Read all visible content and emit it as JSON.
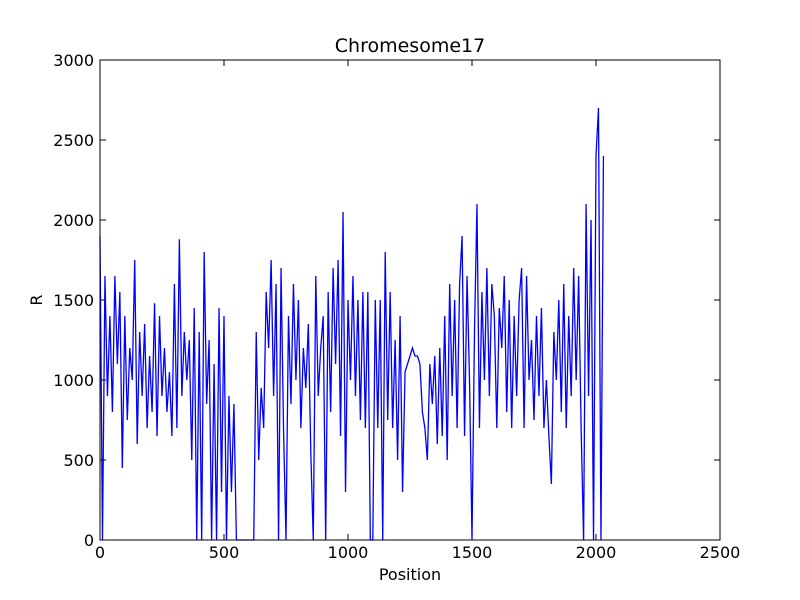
{
  "chart_data": {
    "type": "line",
    "title": "Chromesome17",
    "x_label": "Position",
    "y_label": "R",
    "x": [
      0,
      10,
      20,
      30,
      40,
      50,
      60,
      70,
      80,
      90,
      100,
      110,
      120,
      130,
      140,
      150,
      160,
      170,
      180,
      190,
      200,
      210,
      220,
      230,
      240,
      250,
      260,
      270,
      280,
      290,
      300,
      310,
      320,
      330,
      340,
      350,
      360,
      370,
      380,
      390,
      400,
      410,
      420,
      430,
      440,
      450,
      460,
      470,
      480,
      490,
      500,
      510,
      520,
      530,
      540,
      550,
      560,
      570,
      580,
      590,
      600,
      610,
      620,
      630,
      640,
      650,
      660,
      670,
      680,
      690,
      700,
      710,
      720,
      730,
      740,
      750,
      760,
      770,
      780,
      790,
      800,
      810,
      820,
      830,
      840,
      850,
      860,
      870,
      880,
      890,
      900,
      910,
      920,
      930,
      940,
      950,
      960,
      970,
      980,
      990,
      1000,
      1010,
      1020,
      1030,
      1040,
      1050,
      1060,
      1070,
      1080,
      1090,
      1100,
      1110,
      1120,
      1130,
      1140,
      1150,
      1160,
      1170,
      1180,
      1190,
      1200,
      1210,
      1220,
      1230,
      1240,
      1250,
      1260,
      1270,
      1280,
      1290,
      1300,
      1310,
      1320,
      1330,
      1340,
      1350,
      1360,
      1370,
      1380,
      1390,
      1400,
      1410,
      1420,
      1430,
      1440,
      1450,
      1460,
      1470,
      1480,
      1490,
      1500,
      1510,
      1520,
      1530,
      1540,
      1550,
      1560,
      1570,
      1580,
      1590,
      1600,
      1610,
      1620,
      1630,
      1640,
      1650,
      1660,
      1670,
      1680,
      1690,
      1700,
      1710,
      1720,
      1730,
      1740,
      1750,
      1760,
      1770,
      1780,
      1790,
      1800,
      1810,
      1820,
      1830,
      1840,
      1850,
      1860,
      1870,
      1880,
      1890,
      1900,
      1910,
      1920,
      1930,
      1940,
      1950,
      1960,
      1970,
      1980,
      1990,
      2000,
      2010,
      2020,
      2030
    ],
    "series": [
      {
        "name": "R",
        "color": "#0000ff",
        "values": [
          1900,
          0,
          1650,
          900,
          1400,
          800,
          1650,
          1100,
          1550,
          450,
          1400,
          750,
          1200,
          1000,
          1750,
          600,
          1300,
          900,
          1350,
          700,
          1150,
          800,
          1480,
          650,
          1400,
          900,
          1200,
          800,
          1050,
          650,
          1600,
          700,
          1880,
          900,
          1300,
          1000,
          1250,
          500,
          1450,
          0,
          1300,
          0,
          1800,
          850,
          1250,
          0,
          1100,
          0,
          1450,
          300,
          1400,
          0,
          900,
          300,
          850,
          0,
          0,
          0,
          0,
          0,
          0,
          0,
          0,
          1300,
          500,
          950,
          700,
          1550,
          1200,
          1750,
          900,
          1600,
          0,
          1700,
          700,
          0,
          1400,
          850,
          1600,
          1000,
          1500,
          700,
          1200,
          950,
          1350,
          550,
          0,
          1650,
          900,
          1200,
          1400,
          0,
          1550,
          800,
          1700,
          1100,
          1750,
          650,
          2050,
          300,
          1500,
          1000,
          1650,
          900,
          1500,
          750,
          1550,
          700,
          1550,
          0,
          0,
          1500,
          700,
          1500,
          0,
          1800,
          750,
          1550,
          700,
          1250,
          500,
          1400,
          300,
          1050,
          1100,
          1150,
          1200,
          1150,
          1150,
          1100,
          800,
          700,
          500,
          1100,
          850,
          1150,
          600,
          1200,
          650,
          1400,
          500,
          1600,
          900,
          1500,
          700,
          1600,
          1900,
          650,
          1650,
          1000,
          0,
          1300,
          2100,
          700,
          1550,
          1000,
          1700,
          900,
          1600,
          1400,
          700,
          1450,
          1200,
          1650,
          800,
          1500,
          700,
          1400,
          900,
          1500,
          1700,
          700,
          1650,
          1000,
          1250,
          750,
          1400,
          900,
          1450,
          700,
          1000,
          650,
          350,
          1300,
          1000,
          1500,
          800,
          1600,
          700,
          1400,
          900,
          1700,
          1000,
          1650,
          700,
          0,
          2100,
          900,
          2000,
          0,
          2400,
          2700,
          0,
          2400
        ]
      }
    ],
    "xlim": [
      0,
      2500
    ],
    "xticks": [
      0,
      500,
      1000,
      1500,
      2000,
      2500
    ],
    "ylim": [
      0,
      3000
    ],
    "yticks": [
      0,
      500,
      1000,
      1500,
      2000,
      2500,
      3000
    ]
  }
}
